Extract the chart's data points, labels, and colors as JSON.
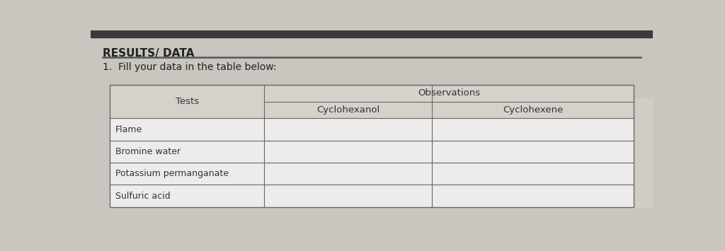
{
  "title": "RESULTS/ DATA",
  "instruction": "1.  Fill your data in the table below:",
  "table_border_color": "#666666",
  "top_bar_color": "#3a3a3a",
  "page_bg": "#c8c6bf",
  "table_cell_bg": "#eeecea",
  "header_cell_bg": "#d4d2cb",
  "col_header": "Observations",
  "col_sub1": "Cyclohexanol",
  "col_sub2": "Cyclohexene",
  "row_label_col": "Tests",
  "rows": [
    "Flame",
    "Bromine water",
    "Potassium permanganate",
    "Sulfuric acid"
  ],
  "title_fontsize": 11,
  "instruction_fontsize": 10,
  "table_fontsize": 9.5
}
